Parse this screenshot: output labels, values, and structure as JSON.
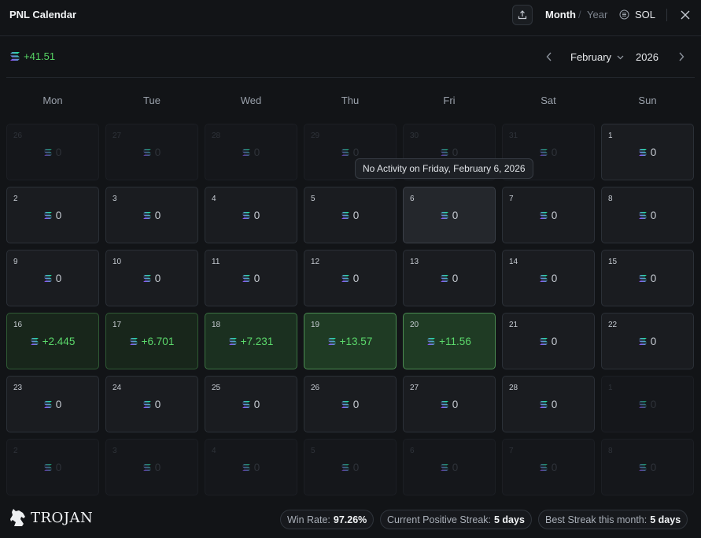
{
  "app": {
    "title": "PNL Calendar"
  },
  "header": {
    "export_icon": "share-upload-icon",
    "view_month": "Month",
    "view_separator": "/",
    "view_year": "Year",
    "token_icon": "sol-coin-icon",
    "token_label": "SOL",
    "close_icon": "close-icon"
  },
  "summary": {
    "total": "+41.51"
  },
  "nav": {
    "month": "February",
    "year": "2026"
  },
  "weekdays": [
    "Mon",
    "Tue",
    "Wed",
    "Thu",
    "Fri",
    "Sat",
    "Sun"
  ],
  "tooltip": "No Activity on Friday, February 6, 2026",
  "days": [
    {
      "d": "26",
      "v": "0",
      "s": "muted"
    },
    {
      "d": "27",
      "v": "0",
      "s": "muted"
    },
    {
      "d": "28",
      "v": "0",
      "s": "muted"
    },
    {
      "d": "29",
      "v": "0",
      "s": "muted"
    },
    {
      "d": "30",
      "v": "0",
      "s": "muted"
    },
    {
      "d": "31",
      "v": "0",
      "s": "muted"
    },
    {
      "d": "1",
      "v": "0",
      "s": "normal"
    },
    {
      "d": "2",
      "v": "0",
      "s": "normal"
    },
    {
      "d": "3",
      "v": "0",
      "s": "normal"
    },
    {
      "d": "4",
      "v": "0",
      "s": "normal"
    },
    {
      "d": "5",
      "v": "0",
      "s": "normal"
    },
    {
      "d": "6",
      "v": "0",
      "s": "highlight"
    },
    {
      "d": "7",
      "v": "0",
      "s": "normal"
    },
    {
      "d": "8",
      "v": "0",
      "s": "normal"
    },
    {
      "d": "9",
      "v": "0",
      "s": "normal"
    },
    {
      "d": "10",
      "v": "0",
      "s": "normal"
    },
    {
      "d": "11",
      "v": "0",
      "s": "normal"
    },
    {
      "d": "12",
      "v": "0",
      "s": "normal"
    },
    {
      "d": "13",
      "v": "0",
      "s": "normal"
    },
    {
      "d": "14",
      "v": "0",
      "s": "normal"
    },
    {
      "d": "15",
      "v": "0",
      "s": "normal"
    },
    {
      "d": "16",
      "v": "+2.445",
      "s": "pos"
    },
    {
      "d": "17",
      "v": "+6.701",
      "s": "pos"
    },
    {
      "d": "18",
      "v": "+7.231",
      "s": "pos lvl2"
    },
    {
      "d": "19",
      "v": "+13.57",
      "s": "pos lvl3"
    },
    {
      "d": "20",
      "v": "+11.56",
      "s": "pos lvl3"
    },
    {
      "d": "21",
      "v": "0",
      "s": "normal"
    },
    {
      "d": "22",
      "v": "0",
      "s": "normal"
    },
    {
      "d": "23",
      "v": "0",
      "s": "normal"
    },
    {
      "d": "24",
      "v": "0",
      "s": "normal"
    },
    {
      "d": "25",
      "v": "0",
      "s": "normal"
    },
    {
      "d": "26",
      "v": "0",
      "s": "normal"
    },
    {
      "d": "27",
      "v": "0",
      "s": "normal"
    },
    {
      "d": "28",
      "v": "0",
      "s": "normal"
    },
    {
      "d": "1",
      "v": "0",
      "s": "muted"
    },
    {
      "d": "2",
      "v": "0",
      "s": "muted"
    },
    {
      "d": "3",
      "v": "0",
      "s": "muted"
    },
    {
      "d": "4",
      "v": "0",
      "s": "muted"
    },
    {
      "d": "5",
      "v": "0",
      "s": "muted"
    },
    {
      "d": "6",
      "v": "0",
      "s": "muted"
    },
    {
      "d": "7",
      "v": "0",
      "s": "muted"
    },
    {
      "d": "8",
      "v": "0",
      "s": "muted"
    }
  ],
  "footer": {
    "logo_text": "TROJAN",
    "win_rate_label": "Win Rate:",
    "win_rate_value": "97.26%",
    "streak_label": "Current Positive Streak:",
    "streak_value": "5 days",
    "best_label": "Best Streak this month:",
    "best_value": "5 days"
  },
  "colors": {
    "background": "#121417",
    "positive": "#56d364",
    "cell_border": "#2b3037"
  }
}
